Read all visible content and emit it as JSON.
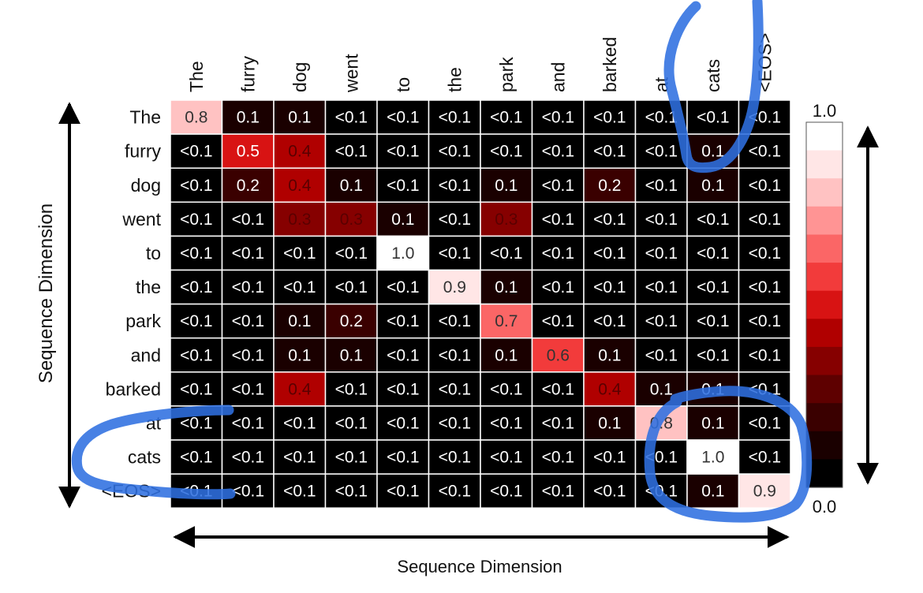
{
  "chart_data": {
    "type": "heatmap",
    "title": "",
    "x_tokens": [
      "The",
      "furry",
      "dog",
      "went",
      "to",
      "the",
      "park",
      "and",
      "barked",
      "at",
      "cats",
      "<EOS>"
    ],
    "y_tokens": [
      "The",
      "furry",
      "dog",
      "went",
      "to",
      "the",
      "park",
      "and",
      "barked",
      "at",
      "cats",
      "<EOS>"
    ],
    "xlabel": "Sequence Dimension",
    "ylabel": "Sequence Dimension",
    "labels": [
      [
        "0.8",
        "0.1",
        "0.1",
        "<0.1",
        "<0.1",
        "<0.1",
        "<0.1",
        "<0.1",
        "<0.1",
        "<0.1",
        "<0.1",
        "<0.1"
      ],
      [
        "<0.1",
        "0.5",
        "0.4",
        "<0.1",
        "<0.1",
        "<0.1",
        "<0.1",
        "<0.1",
        "<0.1",
        "<0.1",
        "0.1",
        "<0.1"
      ],
      [
        "<0.1",
        "0.2",
        "0.4",
        "0.1",
        "<0.1",
        "<0.1",
        "0.1",
        "<0.1",
        "0.2",
        "<0.1",
        "0.1",
        "<0.1"
      ],
      [
        "<0.1",
        "<0.1",
        "0.3",
        "0.3",
        "0.1",
        "<0.1",
        "0.3",
        "<0.1",
        "<0.1",
        "<0.1",
        "<0.1",
        "<0.1"
      ],
      [
        "<0.1",
        "<0.1",
        "<0.1",
        "<0.1",
        "1.0",
        "<0.1",
        "<0.1",
        "<0.1",
        "<0.1",
        "<0.1",
        "<0.1",
        "<0.1"
      ],
      [
        "<0.1",
        "<0.1",
        "<0.1",
        "<0.1",
        "<0.1",
        "0.9",
        "0.1",
        "<0.1",
        "<0.1",
        "<0.1",
        "<0.1",
        "<0.1"
      ],
      [
        "<0.1",
        "<0.1",
        "0.1",
        "0.2",
        "<0.1",
        "<0.1",
        "0.7",
        "<0.1",
        "<0.1",
        "<0.1",
        "<0.1",
        "<0.1"
      ],
      [
        "<0.1",
        "<0.1",
        "0.1",
        "0.1",
        "<0.1",
        "<0.1",
        "0.1",
        "0.6",
        "0.1",
        "<0.1",
        "<0.1",
        "<0.1"
      ],
      [
        "<0.1",
        "<0.1",
        "0.4",
        "<0.1",
        "<0.1",
        "<0.1",
        "<0.1",
        "<0.1",
        "0.4",
        "0.1",
        "0.1",
        "<0.1"
      ],
      [
        "<0.1",
        "<0.1",
        "<0.1",
        "<0.1",
        "<0.1",
        "<0.1",
        "<0.1",
        "<0.1",
        "0.1",
        "0.8",
        "0.1",
        "<0.1"
      ],
      [
        "<0.1",
        "<0.1",
        "<0.1",
        "<0.1",
        "<0.1",
        "<0.1",
        "<0.1",
        "<0.1",
        "<0.1",
        "<0.1",
        "1.0",
        "<0.1"
      ],
      [
        "<0.1",
        "<0.1",
        "<0.1",
        "<0.1",
        "<0.1",
        "<0.1",
        "<0.1",
        "<0.1",
        "<0.1",
        "<0.1",
        "0.1",
        "0.9"
      ]
    ],
    "colorbar": {
      "min_label": "0.0",
      "max_label": "1.0",
      "range": [
        0,
        1
      ],
      "levels": 12,
      "colors": [
        "#000000",
        "#1a0000",
        "#3a0000",
        "#5e0000",
        "#860000",
        "#b00000",
        "#d81313",
        "#f23b3b",
        "#fb6666",
        "#ff9494",
        "#ffc2c2",
        "#ffe6e6",
        "#ffffff"
      ]
    },
    "grid": true
  },
  "annotations": {
    "highlight_color": "#2f6fe0"
  }
}
